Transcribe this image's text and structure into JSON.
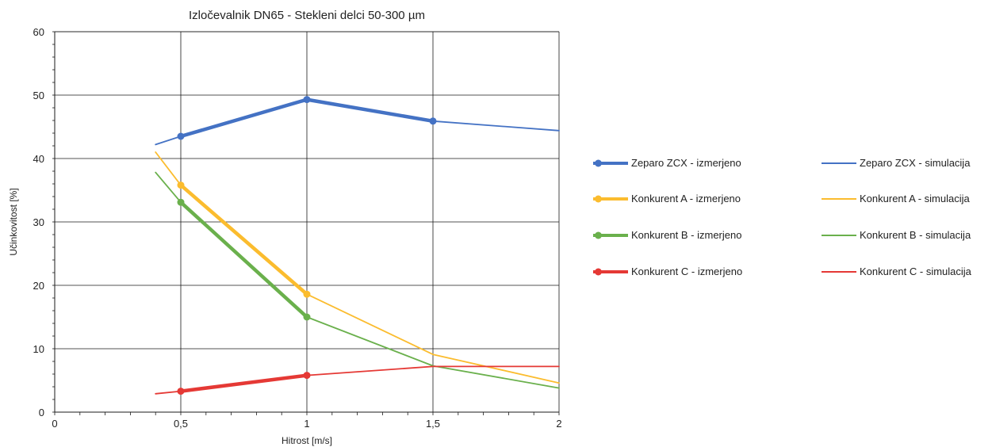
{
  "chart_data": {
    "type": "line",
    "title": "Izločevalnik DN65 - Stekleni delci 50-300 µm",
    "xlabel": "Hitrost [m/s]",
    "ylabel": "Učinkovitost [%]",
    "xlim": [
      0,
      2
    ],
    "ylim": [
      0,
      60
    ],
    "x_ticks": [
      0,
      0.5,
      1,
      1.5,
      2
    ],
    "x_tick_labels": [
      "0",
      "0,5",
      "1",
      "1,5",
      "2"
    ],
    "y_ticks": [
      0,
      10,
      20,
      30,
      40,
      50,
      60
    ],
    "y_tick_labels": [
      "0",
      "10",
      "20",
      "30",
      "40",
      "50",
      "60"
    ],
    "grid": true,
    "legend_position": "right",
    "series": [
      {
        "name": "Zeparo ZCX - izmerjeno",
        "kind": "measured",
        "color": "#4472c4",
        "x": [
          0.5,
          1,
          1.5
        ],
        "y": [
          43.5,
          49.3,
          45.9
        ]
      },
      {
        "name": "Zeparo ZCX - simulacija",
        "kind": "simulated",
        "color": "#4472c4",
        "x": [
          0.4,
          0.5,
          1,
          1.5,
          2
        ],
        "y": [
          42.2,
          43.5,
          49.3,
          45.9,
          44.4
        ]
      },
      {
        "name": "Konkurent A - izmerjeno",
        "kind": "measured",
        "color": "#fbbc2e",
        "x": [
          0.5,
          1
        ],
        "y": [
          35.8,
          18.6
        ]
      },
      {
        "name": "Konkurent A - simulacija",
        "kind": "simulated",
        "color": "#fbbc2e",
        "x": [
          0.4,
          0.5,
          1,
          1.5,
          2
        ],
        "y": [
          41,
          35.8,
          18.6,
          9.1,
          4.6
        ]
      },
      {
        "name": "Konkurent B - izmerjeno",
        "kind": "measured",
        "color": "#6ab04c",
        "x": [
          0.5,
          1
        ],
        "y": [
          33.1,
          15
        ]
      },
      {
        "name": "Konkurent B - simulacija",
        "kind": "simulated",
        "color": "#6ab04c",
        "x": [
          0.4,
          0.5,
          1,
          1.5,
          2
        ],
        "y": [
          37.8,
          33.1,
          15,
          7.3,
          3.8
        ]
      },
      {
        "name": "Konkurent C - izmerjeno",
        "kind": "measured",
        "color": "#e53935",
        "x": [
          0.5,
          1
        ],
        "y": [
          3.3,
          5.8
        ]
      },
      {
        "name": "Konkurent C - simulacija",
        "kind": "simulated",
        "color": "#e53935",
        "x": [
          0.4,
          0.5,
          1,
          1.5,
          2
        ],
        "y": [
          2.9,
          3.3,
          5.8,
          7.2,
          7.2
        ]
      }
    ]
  }
}
